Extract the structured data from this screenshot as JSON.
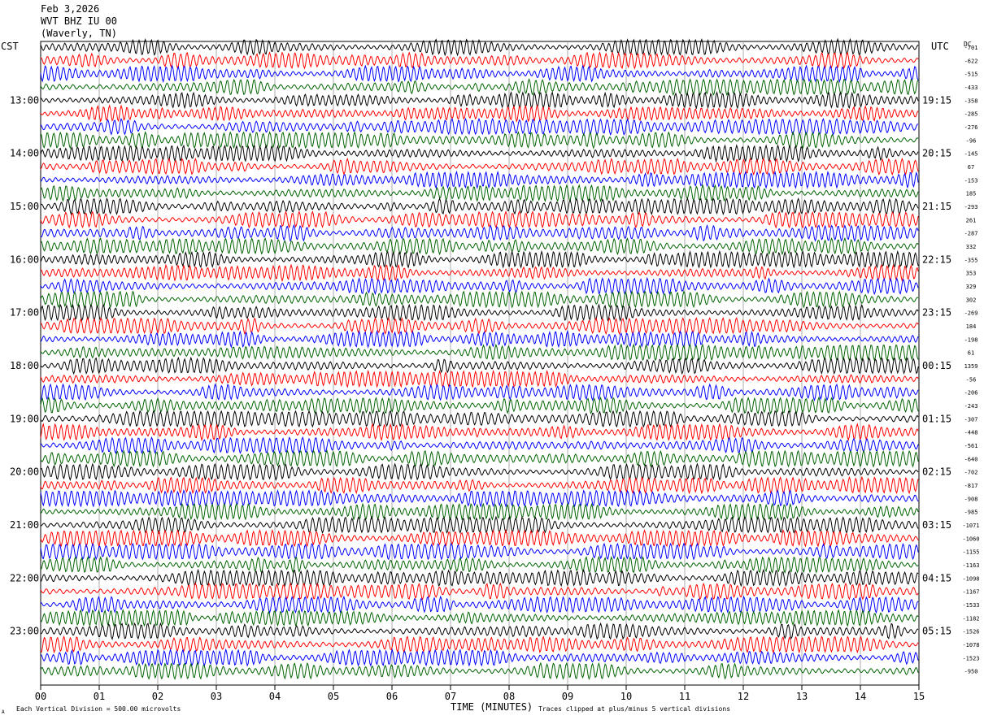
{
  "header": {
    "date": "Feb 3,2026",
    "station": "WVT BHZ IU 00",
    "location": "(Waverly, TN)"
  },
  "labels": {
    "left_zone": "CST",
    "right_zone": "UTC",
    "dc": "DC",
    "xlabel": "TIME (MINUTES)",
    "scale_note": "Each Vertical Division =  500.00 microvolts",
    "clip_note": "Traces clipped at plus/minus 5 vertical divisions",
    "corner_mark": "A"
  },
  "chart_data": {
    "type": "line",
    "description_type": "helicorder",
    "x_ticks": [
      "00",
      "01",
      "02",
      "03",
      "04",
      "05",
      "06",
      "07",
      "08",
      "09",
      "10",
      "11",
      "12",
      "13",
      "14",
      "15"
    ],
    "xlim": [
      0,
      15
    ],
    "traces_per_hour": 4,
    "trace_colors": [
      "#000000",
      "#ff0000",
      "#0000ff",
      "#006400"
    ],
    "left_hour_labels": [
      "13:00",
      "14:00",
      "15:00",
      "16:00",
      "17:00",
      "18:00",
      "19:00",
      "20:00",
      "21:00",
      "22:00",
      "23:00"
    ],
    "right_hour_labels": [
      "19:15",
      "20:15",
      "21:15",
      "22:15",
      "23:15",
      "00:15",
      "01:15",
      "02:15",
      "03:15",
      "04:15",
      "05:15"
    ],
    "dc_values": [
      "-701",
      "-622",
      "-515",
      "-433",
      "-358",
      "-285",
      "-276",
      "-96",
      "-145",
      "67",
      "-153",
      "185",
      "-293",
      "261",
      "-287",
      "332",
      "-355",
      "353",
      "329",
      "302",
      "-269",
      "184",
      "-198",
      "61",
      "1359",
      "-56",
      "-206",
      "-243",
      "-307",
      "-448",
      "-561",
      "-640",
      "-702",
      "-817",
      "-908",
      "-985",
      "-1071",
      "-1060",
      "-1155",
      "-1163",
      "-1098",
      "-1167",
      "-1533",
      "-1182",
      "-1526",
      "-1078",
      "-1523",
      "-950"
    ]
  }
}
